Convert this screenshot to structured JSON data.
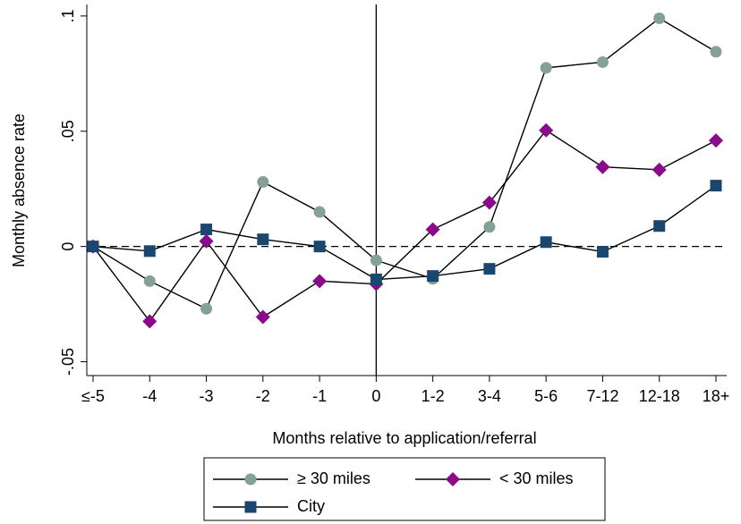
{
  "chart_data": {
    "type": "line",
    "y_label": "Monthly absence rate",
    "x_label": "Months relative to application/referral",
    "categories": [
      "≤-5",
      "-4",
      "-3",
      "-2",
      "-1",
      "0",
      "1-2",
      "3-4",
      "5-6",
      "7-12",
      "12-18",
      "18+"
    ],
    "series": [
      {
        "name": "≥ 30 miles",
        "color": "#85a094",
        "marker": "circle",
        "values": [
          0,
          -0.015,
          -0.027,
          0.028,
          0.015,
          -0.006,
          -0.014,
          0.0085,
          0.0775,
          0.08,
          0.099,
          0.0845
        ]
      },
      {
        "name": "< 30 miles",
        "color": "#8b0a8c",
        "marker": "diamond",
        "values": [
          0,
          -0.0325,
          0.0023,
          -0.0306,
          -0.015,
          -0.0163,
          0.0074,
          0.019,
          0.0504,
          0.0345,
          0.0333,
          0.046
        ]
      },
      {
        "name": "City",
        "color": "#1a476f",
        "marker": "square",
        "values": [
          0,
          -0.002,
          0.0074,
          0.0031,
          0,
          -0.0143,
          -0.0128,
          -0.0097,
          0.0019,
          -0.0023,
          0.0089,
          0.0264
        ]
      }
    ],
    "ylim": [
      -0.056,
      0.105
    ],
    "yticks": [
      {
        "value": 0.1,
        "label": ".1"
      },
      {
        "value": 0.05,
        "label": ".05"
      },
      0,
      {
        "value": -0.05,
        "label": "-.05"
      }
    ],
    "hline": 0,
    "vline": "0",
    "legend": "bottom"
  }
}
